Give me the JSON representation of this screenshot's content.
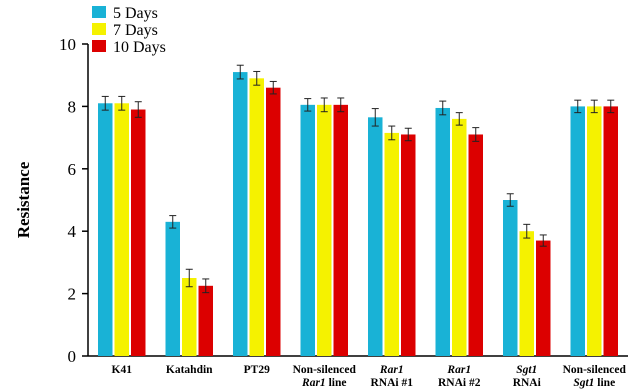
{
  "chart_data": {
    "type": "bar",
    "title": "",
    "xlabel": "",
    "ylabel": "Resistance",
    "ylim": [
      0,
      10
    ],
    "yticks": [
      0,
      2,
      4,
      6,
      8,
      10
    ],
    "grid": false,
    "legend_position": "top-left",
    "categories": [
      [
        "K41"
      ],
      [
        "Katahdin"
      ],
      [
        "PT29"
      ],
      [
        "Non-silenced",
        "Rar1 line"
      ],
      [
        "Rar1",
        "RNAi #1"
      ],
      [
        "Rar1",
        "RNAi #2"
      ],
      [
        "Sgt1",
        "RNAi"
      ],
      [
        "Non-silenced",
        "Sgt1 line"
      ]
    ],
    "series": [
      {
        "name": "5 Days",
        "color": "#19b2d6",
        "values": [
          8.1,
          4.3,
          9.1,
          8.05,
          7.65,
          7.95,
          5.0,
          8.0
        ],
        "errors": [
          0.22,
          0.2,
          0.22,
          0.2,
          0.28,
          0.22,
          0.2,
          0.2
        ]
      },
      {
        "name": "7 Days",
        "color": "#f5f200",
        "values": [
          8.1,
          2.5,
          8.9,
          8.05,
          7.15,
          7.6,
          4.0,
          8.0
        ],
        "errors": [
          0.22,
          0.28,
          0.22,
          0.22,
          0.22,
          0.2,
          0.22,
          0.2
        ]
      },
      {
        "name": "10 Days",
        "color": "#dc0000",
        "values": [
          7.9,
          2.25,
          8.6,
          8.05,
          7.1,
          7.1,
          3.7,
          8.0
        ],
        "errors": [
          0.25,
          0.22,
          0.2,
          0.22,
          0.2,
          0.22,
          0.18,
          0.2
        ]
      }
    ]
  }
}
